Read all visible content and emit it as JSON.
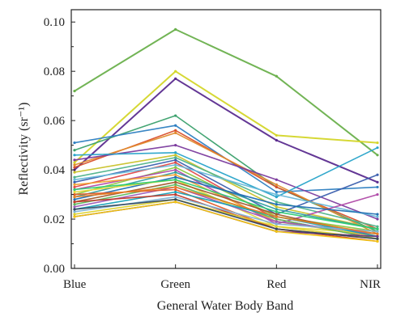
{
  "chart_data": {
    "type": "line",
    "title": "",
    "xlabel": "General Water Body Band",
    "ylabel": "Reflectivity (sr⁻¹)",
    "categories": [
      "Blue",
      "Green",
      "Red",
      "NIR"
    ],
    "ylim": [
      0,
      0.105
    ],
    "yticks": [
      0.0,
      0.02,
      0.04,
      0.06,
      0.08,
      0.1
    ],
    "ytick_labels": [
      "0.00",
      "0.02",
      "0.04",
      "0.06",
      "0.08",
      "0.10"
    ],
    "grid": false,
    "legend": "none",
    "series": [
      {
        "color": "#6ab04c",
        "values": [
          0.072,
          0.097,
          0.078,
          0.046
        ]
      },
      {
        "color": "#d4d62a",
        "values": [
          0.043,
          0.08,
          0.054,
          0.051
        ]
      },
      {
        "color": "#5b2c8f",
        "values": [
          0.04,
          0.077,
          0.052,
          0.035
        ]
      },
      {
        "color": "#3aa06c",
        "values": [
          0.048,
          0.062,
          0.033,
          0.015
        ]
      },
      {
        "color": "#2e7fc1",
        "values": [
          0.051,
          0.058,
          0.031,
          0.033
        ]
      },
      {
        "color": "#d94f2a",
        "values": [
          0.041,
          0.056,
          0.033,
          0.016
        ]
      },
      {
        "color": "#e08a2c",
        "values": [
          0.042,
          0.055,
          0.034,
          0.014
        ]
      },
      {
        "color": "#7c3c9e",
        "values": [
          0.044,
          0.05,
          0.036,
          0.02
        ]
      },
      {
        "color": "#27a3c9",
        "values": [
          0.046,
          0.047,
          0.029,
          0.049
        ]
      },
      {
        "color": "#c9c22a",
        "values": [
          0.039,
          0.046,
          0.025,
          0.016
        ]
      },
      {
        "color": "#4fb38a",
        "values": [
          0.037,
          0.045,
          0.027,
          0.017
        ]
      },
      {
        "color": "#3b5fae",
        "values": [
          0.035,
          0.044,
          0.022,
          0.038
        ]
      },
      {
        "color": "#e04a4a",
        "values": [
          0.033,
          0.043,
          0.02,
          0.012
        ]
      },
      {
        "color": "#66b8d8",
        "values": [
          0.036,
          0.042,
          0.03,
          0.021
        ]
      },
      {
        "color": "#8cc63f",
        "values": [
          0.03,
          0.041,
          0.021,
          0.015
        ]
      },
      {
        "color": "#b04aa8",
        "values": [
          0.032,
          0.04,
          0.018,
          0.03
        ]
      },
      {
        "color": "#2f9e9e",
        "values": [
          0.029,
          0.039,
          0.024,
          0.016
        ]
      },
      {
        "color": "#f0a030",
        "values": [
          0.034,
          0.038,
          0.019,
          0.013
        ]
      },
      {
        "color": "#1f6fb2",
        "values": [
          0.028,
          0.037,
          0.026,
          0.022
        ]
      },
      {
        "color": "#e3d93a",
        "values": [
          0.031,
          0.036,
          0.017,
          0.014
        ]
      },
      {
        "color": "#a05a2c",
        "values": [
          0.027,
          0.035,
          0.022,
          0.013
        ]
      },
      {
        "color": "#5cb85c",
        "values": [
          0.026,
          0.034,
          0.02,
          0.012
        ]
      },
      {
        "color": "#9b59b6",
        "values": [
          0.025,
          0.033,
          0.019,
          0.014
        ]
      },
      {
        "color": "#e35d2a",
        "values": [
          0.03,
          0.032,
          0.016,
          0.012
        ]
      },
      {
        "color": "#17a2b8",
        "values": [
          0.024,
          0.031,
          0.021,
          0.013
        ]
      },
      {
        "color": "#c0392b",
        "values": [
          0.027,
          0.03,
          0.016,
          0.011
        ]
      },
      {
        "color": "#7fb3d5",
        "values": [
          0.023,
          0.029,
          0.018,
          0.015
        ]
      },
      {
        "color": "#dcd12a",
        "values": [
          0.022,
          0.028,
          0.017,
          0.012
        ]
      },
      {
        "color": "#6c3483",
        "values": [
          0.021,
          0.027,
          0.015,
          0.013
        ]
      },
      {
        "color": "#e67e22",
        "values": [
          0.029,
          0.033,
          0.021,
          0.014
        ]
      },
      {
        "color": "#2ecc71",
        "values": [
          0.032,
          0.036,
          0.023,
          0.016
        ]
      },
      {
        "color": "#34495e",
        "values": [
          0.024,
          0.028,
          0.016,
          0.012
        ]
      },
      {
        "color": "#f1c40f",
        "values": [
          0.021,
          0.027,
          0.015,
          0.011
        ]
      }
    ]
  }
}
